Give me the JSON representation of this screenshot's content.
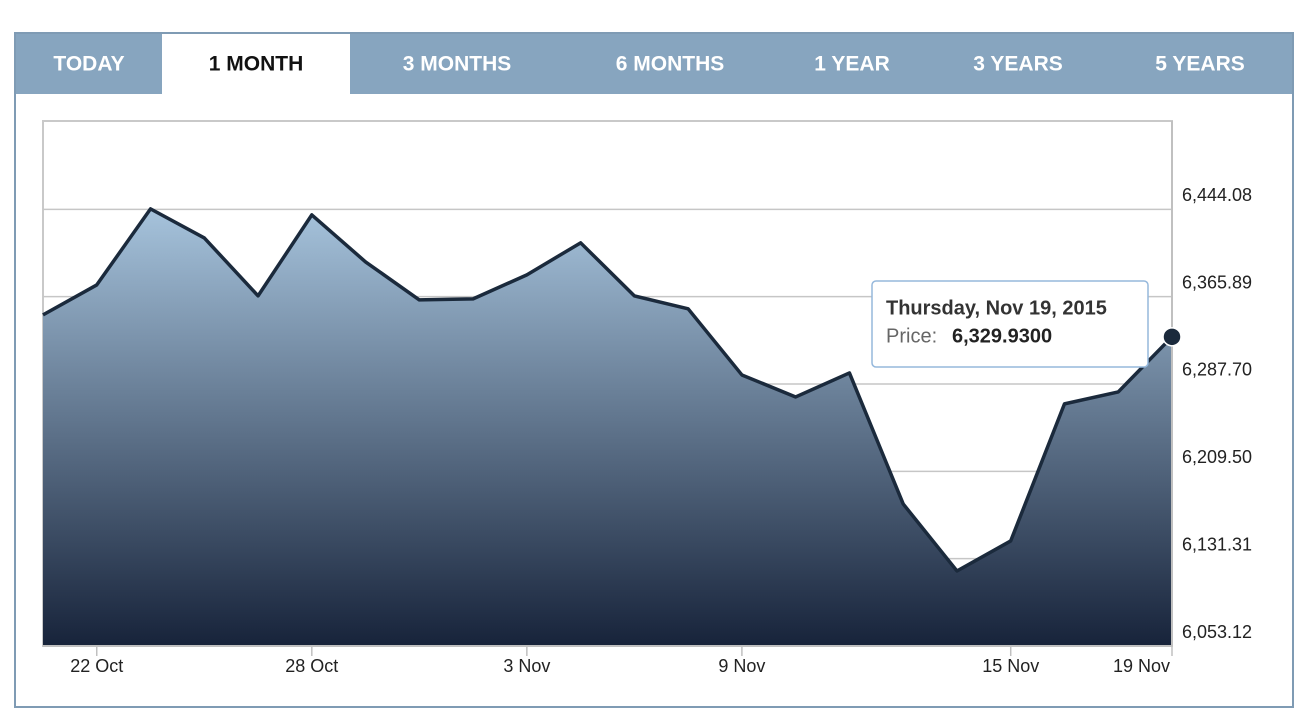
{
  "tabs": [
    "TODAY",
    "1 MONTH",
    "3 MONTHS",
    "6 MONTHS",
    "1 YEAR",
    "3 YEARS",
    "5 YEARS"
  ],
  "active_tab": 1,
  "chart_data": {
    "type": "area",
    "categories": [
      null,
      "22 Oct",
      null,
      null,
      null,
      "28 Oct",
      null,
      null,
      null,
      "3 Nov",
      null,
      null,
      null,
      "9 Nov",
      null,
      null,
      null,
      null,
      "15 Nov",
      null,
      null,
      "19 Nov"
    ],
    "values": [
      6349.6,
      6376.4,
      6444.5,
      6418.5,
      6366.6,
      6439.1,
      6397.0,
      6363.0,
      6363.9,
      6385.4,
      6414.1,
      6366.6,
      6355.0,
      6295.8,
      6276.1,
      6297.6,
      6180.3,
      6120.3,
      6147.2,
      6269.9,
      6280.6,
      6329.93
    ],
    "color": "#1b2a3c",
    "fill_top": "#a6c3dc",
    "fill_bottom": "#17233a",
    "ylim": [
      6053.12,
      6522.27
    ],
    "yticks": [
      {
        "value": 6053.12,
        "label": "6,053.12"
      },
      {
        "value": 6131.31,
        "label": "6,131.31"
      },
      {
        "value": 6209.5,
        "label": "6,209.50"
      },
      {
        "value": 6287.7,
        "label": "6,287.70"
      },
      {
        "value": 6365.89,
        "label": "6,365.89"
      },
      {
        "value": 6444.08,
        "label": "6,444.08"
      }
    ],
    "grid": true,
    "tooltip": {
      "title": "Thursday, Nov 19, 2015",
      "label": "Price:",
      "value_label": "6,329.9300"
    }
  }
}
